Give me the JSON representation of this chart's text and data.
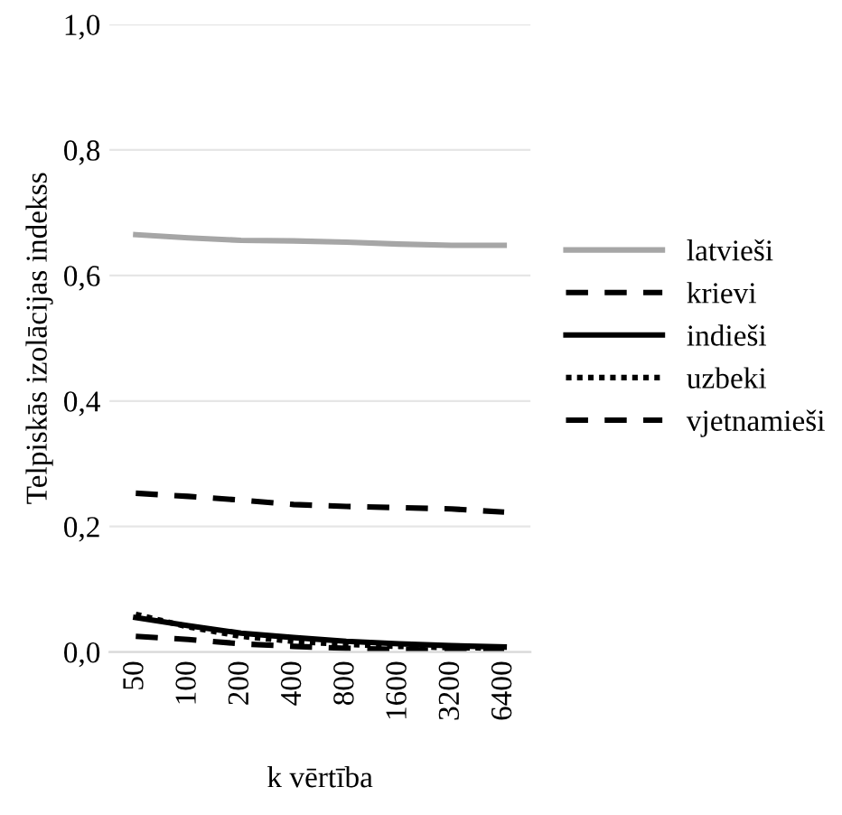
{
  "chart_data": {
    "type": "line",
    "xlabel": "k vērtība",
    "ylabel": "Telpiskās izolācijas indekss",
    "categories": [
      "50",
      "100",
      "200",
      "400",
      "800",
      "1600",
      "3200",
      "6400"
    ],
    "series": [
      {
        "name": "latvieši",
        "color": "#a6a6a6",
        "line_style": "solid",
        "values": [
          0.665,
          0.66,
          0.656,
          0.655,
          0.653,
          0.65,
          0.648,
          0.648
        ]
      },
      {
        "name": "krievi",
        "color": "#000000",
        "line_style": "dashed",
        "values": [
          0.253,
          0.248,
          0.242,
          0.235,
          0.232,
          0.23,
          0.228,
          0.223
        ]
      },
      {
        "name": "indieši",
        "color": "#000000",
        "line_style": "solid",
        "values": [
          0.055,
          0.042,
          0.03,
          0.023,
          0.017,
          0.013,
          0.01,
          0.008
        ]
      },
      {
        "name": "uzbeki",
        "color": "#000000",
        "line_style": "dotted",
        "values": [
          0.06,
          0.04,
          0.025,
          0.017,
          0.012,
          0.009,
          0.007,
          0.006
        ]
      },
      {
        "name": "vjetnamieši",
        "color": "#000000",
        "line_style": "dashed",
        "values": [
          0.025,
          0.02,
          0.013,
          0.009,
          0.006,
          0.004,
          0.003,
          0.002
        ]
      }
    ],
    "ylim": [
      0,
      1
    ],
    "yticks": [
      {
        "value": 0,
        "label": "0,0"
      },
      {
        "value": 0.2,
        "label": "0,2"
      },
      {
        "value": 0.4,
        "label": "0,4"
      },
      {
        "value": 0.6,
        "label": "0,6"
      },
      {
        "value": 0.8,
        "label": "0,8"
      },
      {
        "value": 1,
        "label": "1,0"
      }
    ],
    "grid": "y",
    "legend": "right",
    "marker": "none"
  }
}
